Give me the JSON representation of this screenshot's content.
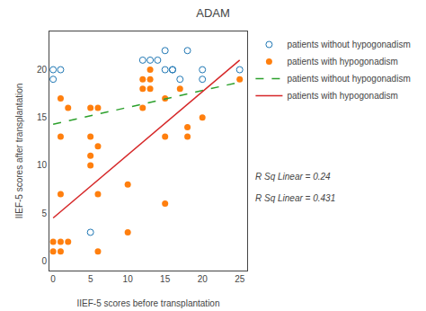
{
  "chart_data": {
    "type": "scatter",
    "title": "ADAM",
    "x_label": "IIEF-5 scores before transplantation",
    "y_label": "IIEF-5 scores after transplantation",
    "annotations": [
      "R Sq Linear = 0.24",
      "R Sq Linear = 0.431"
    ],
    "series": [
      {
        "name": "patients without hypogonadism",
        "type": "scatter",
        "marker": "circle-open",
        "x": [
          0,
          0,
          1,
          12,
          13,
          14,
          15,
          15,
          16,
          16,
          17,
          18,
          20,
          20,
          25,
          5
        ],
        "values": [
          20,
          19,
          20,
          21,
          21,
          21,
          20,
          22,
          20,
          20,
          19,
          22,
          20,
          19,
          20,
          3
        ]
      },
      {
        "name": "patients with hypogonadism",
        "type": "scatter",
        "marker": "circle",
        "x": [
          0,
          0,
          1,
          1,
          1,
          1,
          1,
          2,
          2,
          5,
          5,
          5,
          5,
          6,
          6,
          6,
          6,
          10,
          10,
          12,
          12,
          12,
          13,
          13,
          13,
          15,
          15,
          15,
          17,
          18,
          18,
          20,
          25
        ],
        "values": [
          2,
          1,
          2,
          1,
          7,
          13,
          17,
          2,
          16,
          11,
          13,
          10,
          16,
          7,
          12,
          1,
          16,
          8,
          3,
          19,
          18,
          16,
          20,
          19,
          18,
          17,
          13,
          6,
          18,
          13,
          14,
          15,
          19
        ]
      },
      {
        "name": "patients without hypogonadism",
        "type": "line",
        "line_style": "dashed",
        "x": [
          0,
          25
        ],
        "values": [
          14.3,
          18.7
        ]
      },
      {
        "name": "patients with hypogonadism",
        "type": "line",
        "line_style": "solid",
        "x": [
          0,
          25
        ],
        "values": [
          4.5,
          21.0
        ]
      }
    ],
    "xlim": [
      -0.5,
      26
    ],
    "ylim": [
      -1,
      24
    ],
    "xticks": [
      0,
      5,
      10,
      15,
      20,
      25
    ],
    "yticks": [
      0,
      5,
      10,
      15,
      20
    ],
    "grid": false,
    "legend": "right"
  }
}
